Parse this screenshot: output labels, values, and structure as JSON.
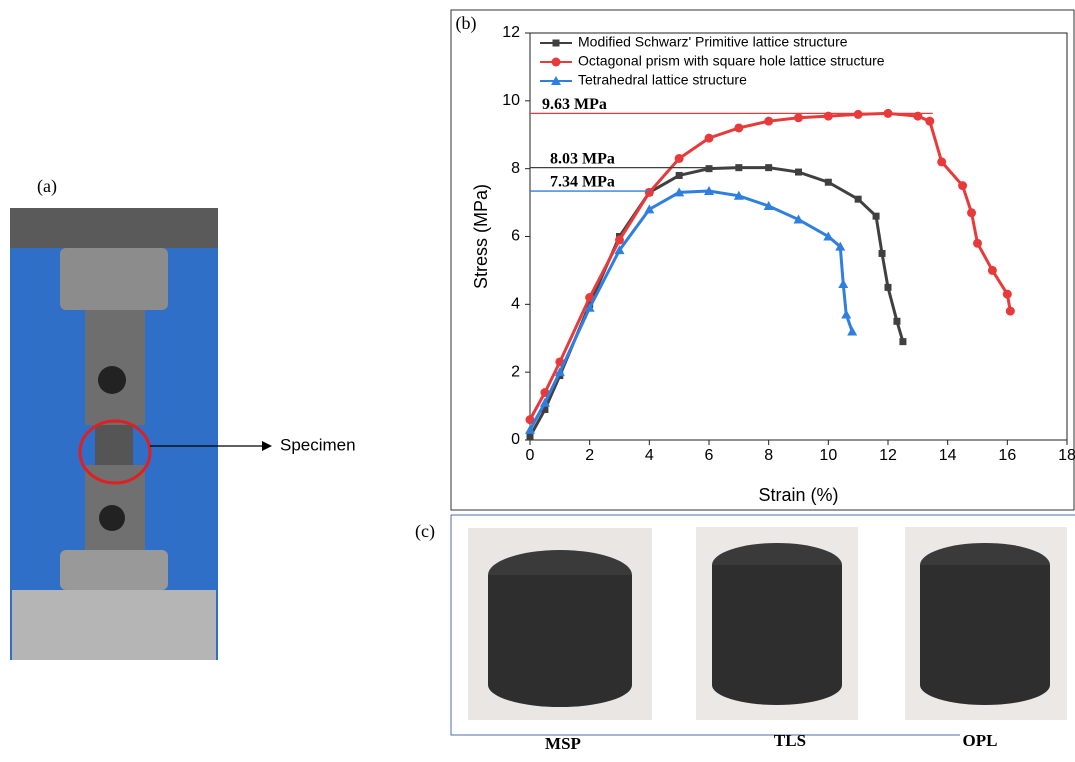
{
  "panels": {
    "a": {
      "label": "(a)",
      "annotation": "Specimen"
    },
    "b": {
      "label": "(b)"
    },
    "c": {
      "label": "(c)",
      "captions": [
        "MSP",
        "TLS",
        "OPL"
      ]
    }
  },
  "chart_data": {
    "type": "line",
    "xlabel": "Strain (%)",
    "ylabel": "Stress (MPa)",
    "xlim": [
      0,
      18
    ],
    "xticks": [
      0,
      2,
      4,
      6,
      8,
      10,
      12,
      14,
      16,
      18
    ],
    "ylim": [
      0,
      12
    ],
    "yticks": [
      0,
      2,
      4,
      6,
      8,
      10,
      12
    ],
    "series": [
      {
        "name": "Modified Schwarz' Primitive lattice structure",
        "color": "#404040",
        "marker": "square",
        "x": [
          0,
          0.5,
          1,
          2,
          3,
          4,
          5,
          6,
          7,
          8,
          9,
          10,
          11,
          11.6,
          11.8,
          12,
          12.3,
          12.5
        ],
        "values": [
          0.1,
          0.9,
          1.9,
          4,
          6,
          7.3,
          7.8,
          8,
          8.03,
          8.03,
          7.9,
          7.6,
          7.1,
          6.6,
          5.5,
          4.5,
          3.5,
          2.9
        ]
      },
      {
        "name": "Octagonal prism with square hole lattice structure",
        "color": "#e83a3a",
        "marker": "circle",
        "x": [
          0,
          0.5,
          1,
          2,
          3,
          4,
          5,
          6,
          7,
          8,
          9,
          10,
          11,
          12,
          13,
          13.4,
          13.8,
          14.5,
          14.8,
          15,
          15.5,
          16,
          16.1
        ],
        "values": [
          0.6,
          1.4,
          2.3,
          4.2,
          5.9,
          7.3,
          8.3,
          8.9,
          9.2,
          9.4,
          9.5,
          9.55,
          9.6,
          9.63,
          9.55,
          9.4,
          8.2,
          7.5,
          6.7,
          5.8,
          5,
          4.3,
          3.8
        ]
      },
      {
        "name": "Tetrahedral lattice structure",
        "color": "#2f7fe0",
        "marker": "triangle",
        "x": [
          0,
          0.5,
          1,
          2,
          3,
          4,
          5,
          6,
          7,
          8,
          9,
          10,
          10.4,
          10.5,
          10.6,
          10.8
        ],
        "values": [
          0.3,
          1.1,
          2,
          3.9,
          5.6,
          6.8,
          7.3,
          7.34,
          7.2,
          6.9,
          6.5,
          6,
          5.7,
          4.6,
          3.7,
          3.2
        ]
      }
    ],
    "reference_lines": [
      {
        "value": 9.63,
        "label": "9.63 MPa",
        "color": "#e83a3a",
        "x_end": 13.5
      },
      {
        "value": 8.03,
        "label": "8.03 MPa",
        "color": "#404040",
        "x_end": 7
      },
      {
        "value": 7.34,
        "label": "7.34 MPa",
        "color": "#2f7fe0",
        "x_end": 4
      }
    ]
  }
}
